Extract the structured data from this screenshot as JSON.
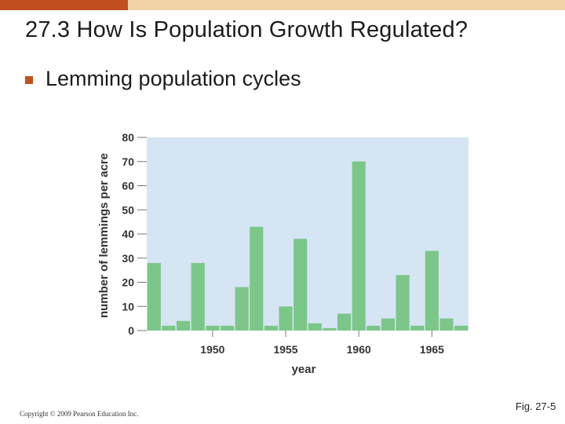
{
  "slide": {
    "title": "27.3 How Is Population Growth Regulated?",
    "bullet": "Lemming population cycles",
    "copyright": "Copyright © 2009 Pearson Education Inc.",
    "figure_ref": "Fig. 27-5"
  },
  "colors": {
    "accent": "#c0501f",
    "accent_light": "#f2d3a6",
    "plot_background": "#d5e5f3",
    "bar": "#7cc68a"
  },
  "chart_data": {
    "type": "bar",
    "title": "",
    "xlabel": "year",
    "ylabel": "number of lemmings per acre",
    "x": [
      1946,
      1947,
      1948,
      1949,
      1950,
      1951,
      1952,
      1953,
      1954,
      1955,
      1956,
      1957,
      1958,
      1959,
      1960,
      1961,
      1962,
      1963,
      1964,
      1965,
      1966,
      1967
    ],
    "values": [
      28,
      2,
      4,
      28,
      2,
      2,
      18,
      43,
      2,
      10,
      38,
      3,
      1,
      7,
      70,
      2,
      5,
      23,
      2,
      33,
      5,
      2
    ],
    "ylim": [
      0,
      80
    ],
    "yticks": [
      0,
      10,
      20,
      30,
      40,
      50,
      60,
      70,
      80
    ],
    "xticks": [
      1950,
      1955,
      1960,
      1965
    ],
    "grid": false
  }
}
